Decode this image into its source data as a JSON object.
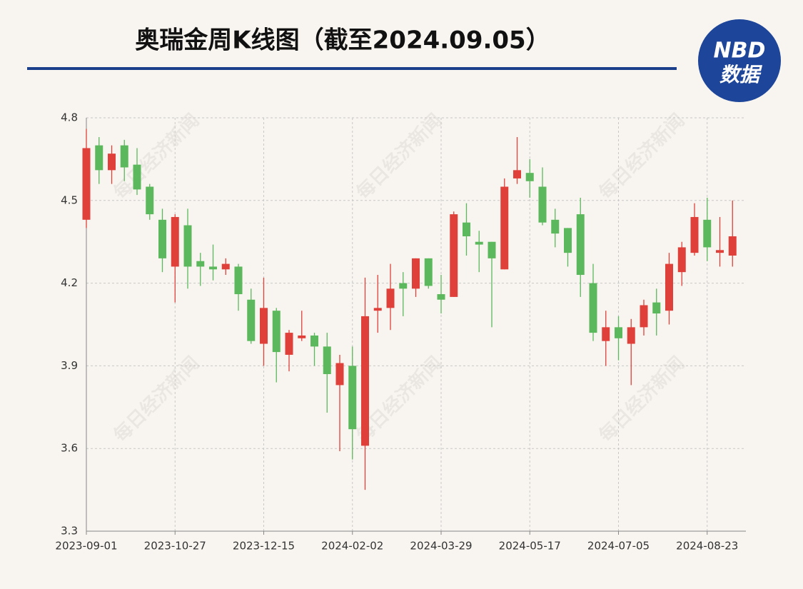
{
  "chart_data": {
    "type": "candlestick",
    "title": "奥瑞金周K线图（截至2024.09.05）",
    "logo": {
      "top": "NBD",
      "bottom": "数据"
    },
    "watermark": "每日经济新闻",
    "categories": [
      "2023-09-01",
      null,
      null,
      null,
      null,
      null,
      null,
      "2023-10-27",
      null,
      null,
      null,
      null,
      null,
      null,
      "2023-12-15",
      null,
      null,
      null,
      null,
      null,
      null,
      "2024-02-02",
      null,
      null,
      null,
      null,
      null,
      null,
      "2024-03-29",
      null,
      null,
      null,
      null,
      null,
      null,
      "2024-05-17",
      null,
      null,
      null,
      null,
      null,
      null,
      "2024-07-05",
      null,
      null,
      null,
      null,
      null,
      null,
      "2024-08-23",
      null,
      null
    ],
    "open": [
      4.43,
      4.7,
      4.61,
      4.7,
      4.63,
      4.55,
      4.43,
      4.26,
      4.41,
      4.28,
      4.26,
      4.25,
      4.26,
      4.14,
      3.98,
      4.1,
      3.94,
      4.0,
      4.01,
      3.97,
      3.83,
      3.9,
      3.61,
      4.1,
      4.11,
      4.2,
      4.18,
      4.29,
      4.16,
      4.15,
      4.42,
      4.35,
      4.35,
      4.25,
      4.58,
      4.6,
      4.55,
      4.43,
      4.4,
      4.45,
      4.2,
      3.99,
      4.04,
      3.98,
      4.04,
      4.13,
      4.1,
      4.24,
      4.31,
      4.43,
      4.31,
      4.3
    ],
    "high": [
      4.76,
      4.73,
      4.7,
      4.72,
      4.69,
      4.56,
      4.47,
      4.45,
      4.47,
      4.31,
      4.34,
      4.29,
      4.27,
      4.18,
      4.22,
      4.11,
      4.03,
      4.1,
      4.02,
      4.02,
      3.94,
      3.97,
      4.22,
      4.23,
      4.27,
      4.24,
      4.29,
      4.29,
      4.23,
      4.46,
      4.49,
      4.39,
      4.35,
      4.58,
      4.73,
      4.65,
      4.62,
      4.47,
      4.4,
      4.51,
      4.27,
      4.1,
      4.08,
      4.07,
      4.14,
      4.18,
      4.31,
      4.35,
      4.49,
      4.51,
      4.44,
      4.5
    ],
    "low": [
      4.4,
      4.56,
      4.56,
      4.57,
      4.52,
      4.43,
      4.24,
      4.13,
      4.18,
      4.19,
      4.21,
      4.23,
      4.1,
      3.98,
      3.9,
      3.84,
      3.88,
      3.99,
      3.9,
      3.73,
      3.59,
      3.56,
      3.45,
      4.02,
      4.03,
      4.08,
      4.15,
      4.18,
      4.09,
      4.15,
      4.3,
      4.24,
      4.04,
      4.25,
      4.56,
      4.51,
      4.41,
      4.33,
      4.26,
      4.15,
      3.99,
      3.9,
      3.92,
      3.83,
      4.01,
      4.01,
      4.05,
      4.19,
      4.3,
      4.28,
      4.26,
      4.26
    ],
    "close": [
      4.69,
      4.61,
      4.67,
      4.62,
      4.54,
      4.45,
      4.29,
      4.44,
      4.26,
      4.26,
      4.25,
      4.27,
      4.16,
      3.99,
      4.11,
      3.95,
      4.02,
      4.01,
      3.97,
      3.87,
      3.91,
      3.67,
      4.08,
      4.11,
      4.18,
      4.18,
      4.29,
      4.19,
      4.14,
      4.45,
      4.37,
      4.34,
      4.29,
      4.55,
      4.61,
      4.57,
      4.42,
      4.38,
      4.31,
      4.23,
      4.02,
      4.04,
      4.0,
      4.04,
      4.12,
      4.09,
      4.27,
      4.33,
      4.44,
      4.33,
      4.32,
      4.37
    ],
    "up_color": "#e0403a",
    "down_color": "#5cb85c",
    "ylim": [
      3.3,
      4.8
    ],
    "yticks": [
      3.3,
      3.6,
      3.9,
      4.2,
      4.5,
      4.8
    ],
    "grid": true
  }
}
